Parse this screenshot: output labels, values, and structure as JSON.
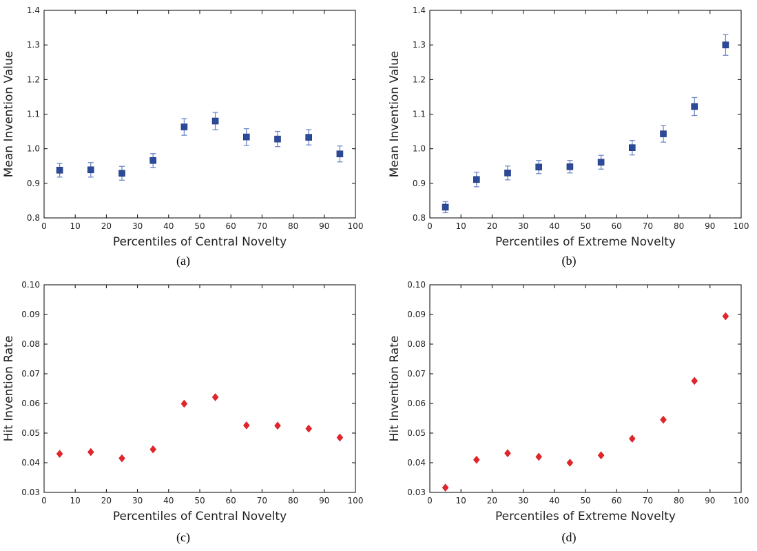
{
  "chart_data": [
    {
      "type": "scatter",
      "caption": "(a)",
      "xlabel": "Percentiles of Central Novelty",
      "ylabel": "Mean Invention Value",
      "xlim": [
        0,
        100
      ],
      "ylim": [
        0.8,
        1.4
      ],
      "xticks": [
        "0",
        "10",
        "20",
        "30",
        "40",
        "50",
        "60",
        "70",
        "80",
        "90",
        "100"
      ],
      "yticks": [
        "0.8",
        "0.9",
        "1.0",
        "1.1",
        "1.2",
        "1.3",
        "1.4"
      ],
      "marker": "square",
      "color": "#2c4a9a",
      "error_bars": true,
      "x": [
        5,
        15,
        25,
        35,
        45,
        55,
        65,
        75,
        85,
        95
      ],
      "y": [
        0.938,
        0.939,
        0.929,
        0.966,
        1.063,
        1.08,
        1.034,
        1.028,
        1.033,
        0.985
      ],
      "yerr": [
        0.02,
        0.021,
        0.02,
        0.02,
        0.024,
        0.025,
        0.024,
        0.022,
        0.022,
        0.023
      ]
    },
    {
      "type": "scatter",
      "caption": "(b)",
      "xlabel": "Percentiles of Extreme Novelty",
      "ylabel": "Mean Invention Value",
      "xlim": [
        0,
        100
      ],
      "ylim": [
        0.8,
        1.4
      ],
      "xticks": [
        "0",
        "10",
        "20",
        "30",
        "40",
        "50",
        "60",
        "70",
        "80",
        "90",
        "100"
      ],
      "yticks": [
        "0.8",
        "0.9",
        "1.0",
        "1.1",
        "1.2",
        "1.3",
        "1.4"
      ],
      "marker": "square",
      "color": "#2c4a9a",
      "error_bars": true,
      "x": [
        5,
        15,
        25,
        35,
        45,
        55,
        65,
        75,
        85,
        95
      ],
      "y": [
        0.831,
        0.911,
        0.93,
        0.947,
        0.948,
        0.961,
        1.003,
        1.043,
        1.122,
        1.3
      ],
      "yerr": [
        0.016,
        0.021,
        0.02,
        0.019,
        0.018,
        0.02,
        0.021,
        0.024,
        0.026,
        0.03
      ]
    },
    {
      "type": "scatter",
      "caption": "(c)",
      "xlabel": "Percentiles of Central Novelty",
      "ylabel": "Hit Invention Rate",
      "xlim": [
        0,
        100
      ],
      "ylim": [
        0.03,
        0.1
      ],
      "xticks": [
        "0",
        "10",
        "20",
        "30",
        "40",
        "50",
        "60",
        "70",
        "80",
        "90",
        "100"
      ],
      "yticks": [
        "0.03",
        "0.04",
        "0.05",
        "0.06",
        "0.07",
        "0.08",
        "0.09",
        "0.10"
      ],
      "marker": "diamond",
      "color": "#e3242b",
      "error_bars": false,
      "x": [
        5,
        15,
        25,
        35,
        45,
        55,
        65,
        75,
        85,
        95
      ],
      "y": [
        0.043,
        0.0436,
        0.0415,
        0.0445,
        0.0599,
        0.0621,
        0.0526,
        0.0525,
        0.0515,
        0.0485
      ]
    },
    {
      "type": "scatter",
      "caption": "(d)",
      "xlabel": "Percentiles of Extreme Novelty",
      "ylabel": "Hit Invention Rate",
      "xlim": [
        0,
        100
      ],
      "ylim": [
        0.03,
        0.1
      ],
      "xticks": [
        "0",
        "10",
        "20",
        "30",
        "40",
        "50",
        "60",
        "70",
        "80",
        "90",
        "100"
      ],
      "yticks": [
        "0.03",
        "0.04",
        "0.05",
        "0.06",
        "0.07",
        "0.08",
        "0.09",
        "0.10"
      ],
      "marker": "diamond",
      "color": "#e3242b",
      "error_bars": false,
      "x": [
        5,
        15,
        25,
        35,
        45,
        55,
        65,
        75,
        85,
        95
      ],
      "y": [
        0.0316,
        0.041,
        0.0432,
        0.042,
        0.04,
        0.0425,
        0.0481,
        0.0545,
        0.0676,
        0.0894
      ]
    }
  ]
}
